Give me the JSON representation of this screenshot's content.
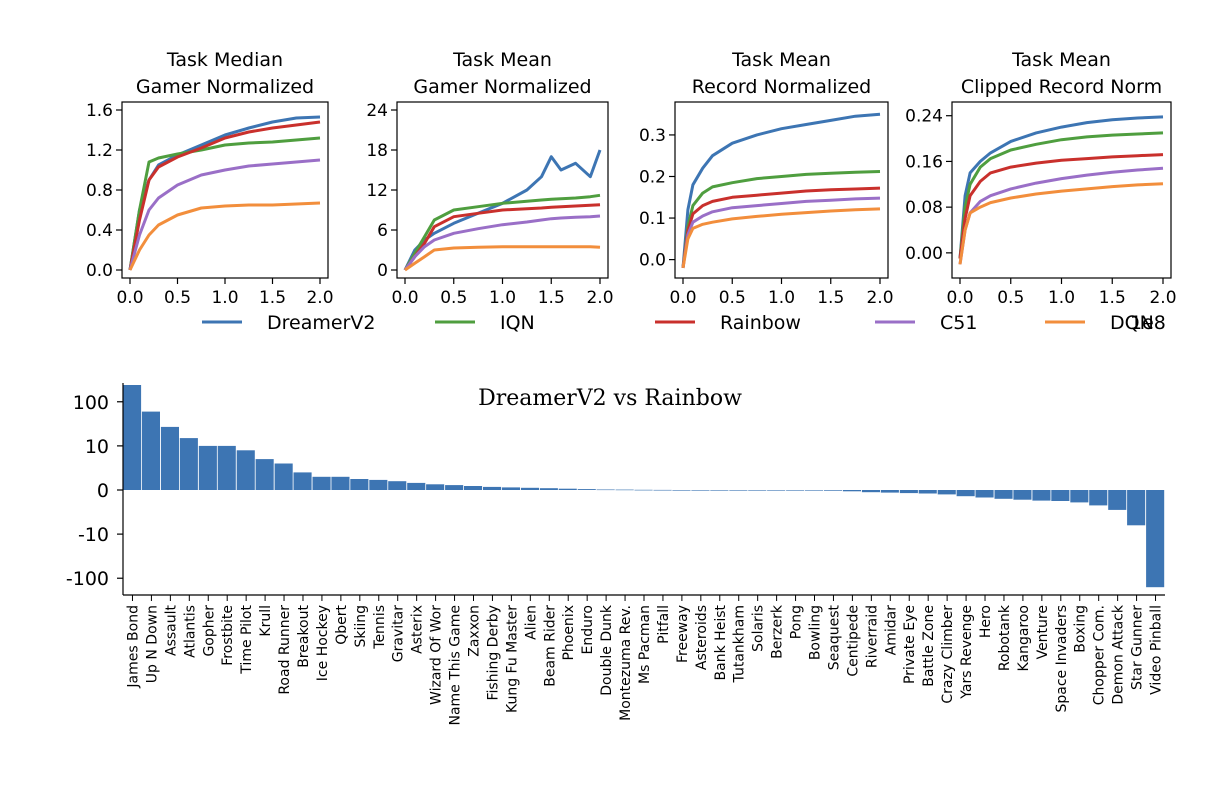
{
  "colors": {
    "DreamerV2": "#3d75b3",
    "IQN": "#4f9e3f",
    "Rainbow": "#c9302c",
    "C51": "#9a6fc7",
    "DQN": "#f28e3c",
    "bar": "#3d75b3"
  },
  "legend": {
    "entries": [
      "DreamerV2",
      "IQN",
      "Rainbow",
      "C51",
      "DQN"
    ],
    "x_scale_label": "1e8"
  },
  "chart_data": [
    {
      "type": "line",
      "title_lines": [
        "Task Median",
        "Gamer Normalized"
      ],
      "xlim": [
        0,
        2.0
      ],
      "ylim": [
        0,
        1.6
      ],
      "xticks": [
        "0.0",
        "0.5",
        "1.0",
        "1.5",
        "2.0"
      ],
      "yticks": [
        "0.0",
        "0.4",
        "0.8",
        "1.2",
        "1.6"
      ],
      "ytick_values": [
        0,
        0.4,
        0.8,
        1.2,
        1.6
      ],
      "x": [
        0.0,
        0.1,
        0.2,
        0.3,
        0.5,
        0.75,
        1.0,
        1.25,
        1.5,
        1.75,
        2.0
      ],
      "series": [
        {
          "name": "DreamerV2",
          "values": [
            0.0,
            0.6,
            0.9,
            1.05,
            1.15,
            1.25,
            1.35,
            1.42,
            1.48,
            1.52,
            1.53
          ]
        },
        {
          "name": "IQN",
          "values": [
            0.0,
            0.6,
            1.08,
            1.12,
            1.16,
            1.2,
            1.25,
            1.27,
            1.28,
            1.3,
            1.32
          ]
        },
        {
          "name": "Rainbow",
          "values": [
            0.0,
            0.5,
            0.9,
            1.03,
            1.13,
            1.22,
            1.32,
            1.38,
            1.42,
            1.45,
            1.48
          ]
        },
        {
          "name": "C51",
          "values": [
            0.0,
            0.35,
            0.6,
            0.72,
            0.85,
            0.95,
            1.0,
            1.04,
            1.06,
            1.08,
            1.1
          ]
        },
        {
          "name": "DQN",
          "values": [
            0.0,
            0.2,
            0.35,
            0.45,
            0.55,
            0.62,
            0.64,
            0.65,
            0.65,
            0.66,
            0.67
          ]
        }
      ]
    },
    {
      "type": "line",
      "title_lines": [
        "Task Mean",
        "Gamer Normalized"
      ],
      "xlim": [
        0,
        2.0
      ],
      "ylim": [
        0,
        24
      ],
      "xticks": [
        "0.0",
        "0.5",
        "1.0",
        "1.5",
        "2.0"
      ],
      "yticks": [
        "0",
        "6",
        "12",
        "18",
        "24"
      ],
      "ytick_values": [
        0,
        6,
        12,
        18,
        24
      ],
      "x": [
        0.0,
        0.1,
        0.2,
        0.3,
        0.5,
        0.75,
        1.0,
        1.25,
        1.4,
        1.5,
        1.6,
        1.75,
        1.9,
        2.0
      ],
      "series": [
        {
          "name": "DreamerV2",
          "values": [
            0.0,
            3.0,
            4.5,
            5.5,
            7.0,
            8.5,
            10.0,
            12.0,
            14.0,
            17.0,
            15.0,
            16.0,
            14.0,
            18.0
          ]
        },
        {
          "name": "IQN",
          "values": [
            0.0,
            2.5,
            5.0,
            7.5,
            9.0,
            9.5,
            10.0,
            10.3,
            10.5,
            10.6,
            10.7,
            10.8,
            11.0,
            11.2
          ]
        },
        {
          "name": "Rainbow",
          "values": [
            0.0,
            2.0,
            4.0,
            6.5,
            8.0,
            8.5,
            9.0,
            9.2,
            9.3,
            9.4,
            9.5,
            9.6,
            9.7,
            9.8
          ]
        },
        {
          "name": "C51",
          "values": [
            0.0,
            2.0,
            3.5,
            4.5,
            5.5,
            6.2,
            6.8,
            7.2,
            7.5,
            7.7,
            7.8,
            7.9,
            8.0,
            8.1
          ]
        },
        {
          "name": "DQN",
          "values": [
            0.0,
            1.0,
            2.0,
            3.0,
            3.3,
            3.4,
            3.5,
            3.5,
            3.5,
            3.5,
            3.5,
            3.5,
            3.5,
            3.4
          ]
        }
      ]
    },
    {
      "type": "line",
      "title_lines": [
        "Task Mean",
        "Record Normalized"
      ],
      "xlim": [
        0,
        2.0
      ],
      "ylim": [
        -0.025,
        0.36
      ],
      "xticks": [
        "0.0",
        "0.5",
        "1.0",
        "1.5",
        "2.0"
      ],
      "yticks": [
        "0.0",
        "0.1",
        "0.2",
        "0.3"
      ],
      "ytick_values": [
        0.0,
        0.1,
        0.2,
        0.3
      ],
      "x": [
        0.0,
        0.05,
        0.1,
        0.2,
        0.3,
        0.5,
        0.75,
        1.0,
        1.25,
        1.5,
        1.75,
        2.0
      ],
      "series": [
        {
          "name": "DreamerV2",
          "values": [
            -0.02,
            0.12,
            0.18,
            0.22,
            0.25,
            0.28,
            0.3,
            0.315,
            0.325,
            0.335,
            0.345,
            0.35
          ]
        },
        {
          "name": "IQN",
          "values": [
            -0.02,
            0.08,
            0.13,
            0.16,
            0.175,
            0.185,
            0.195,
            0.2,
            0.205,
            0.208,
            0.21,
            0.212
          ]
        },
        {
          "name": "Rainbow",
          "values": [
            -0.02,
            0.07,
            0.11,
            0.13,
            0.14,
            0.15,
            0.155,
            0.16,
            0.165,
            0.168,
            0.17,
            0.172
          ]
        },
        {
          "name": "C51",
          "values": [
            -0.02,
            0.06,
            0.09,
            0.105,
            0.115,
            0.125,
            0.13,
            0.135,
            0.14,
            0.143,
            0.146,
            0.148
          ]
        },
        {
          "name": "DQN",
          "values": [
            -0.02,
            0.05,
            0.075,
            0.085,
            0.09,
            0.098,
            0.104,
            0.109,
            0.113,
            0.117,
            0.12,
            0.122
          ]
        }
      ]
    },
    {
      "type": "line",
      "title_lines": [
        "Task Mean",
        "Clipped Record Norm"
      ],
      "xlim": [
        0,
        2.0
      ],
      "ylim": [
        -0.03,
        0.25
      ],
      "xticks": [
        "0.0",
        "0.5",
        "1.0",
        "1.5",
        "2.0"
      ],
      "yticks": [
        "0.00",
        "0.08",
        "0.16",
        "0.24"
      ],
      "ytick_values": [
        0.0,
        0.08,
        0.16,
        0.24
      ],
      "x": [
        0.0,
        0.05,
        0.1,
        0.2,
        0.3,
        0.5,
        0.75,
        1.0,
        1.25,
        1.5,
        1.75,
        2.0
      ],
      "series": [
        {
          "name": "DreamerV2",
          "values": [
            -0.01,
            0.1,
            0.14,
            0.16,
            0.175,
            0.195,
            0.21,
            0.22,
            0.228,
            0.233,
            0.236,
            0.238
          ]
        },
        {
          "name": "IQN",
          "values": [
            -0.01,
            0.08,
            0.12,
            0.15,
            0.165,
            0.18,
            0.19,
            0.198,
            0.203,
            0.206,
            0.208,
            0.21
          ]
        },
        {
          "name": "Rainbow",
          "values": [
            -0.01,
            0.06,
            0.1,
            0.125,
            0.14,
            0.15,
            0.157,
            0.162,
            0.165,
            0.168,
            0.17,
            0.172
          ]
        },
        {
          "name": "C51",
          "values": [
            -0.02,
            0.04,
            0.07,
            0.09,
            0.1,
            0.112,
            0.122,
            0.13,
            0.136,
            0.141,
            0.145,
            0.148
          ]
        },
        {
          "name": "DQN",
          "values": [
            -0.02,
            0.04,
            0.07,
            0.08,
            0.088,
            0.096,
            0.103,
            0.108,
            0.112,
            0.116,
            0.119,
            0.121
          ]
        }
      ]
    },
    {
      "type": "bar",
      "title": "DreamerV2 vs Rainbow",
      "yscale": "symlog",
      "ylim": [
        -240,
        240
      ],
      "yticks": [
        "100",
        "10",
        "0",
        "-10",
        "-100"
      ],
      "ytick_values": [
        100,
        10,
        0,
        -10,
        -100
      ],
      "categories": [
        "James Bond",
        "Up N Down",
        "Assault",
        "Atlantis",
        "Gopher",
        "Frostbite",
        "Time Pilot",
        "Krull",
        "Road Runner",
        "Breakout",
        "Ice Hockey",
        "Qbert",
        "Skiing",
        "Tennis",
        "Gravitar",
        "Asterix",
        "Wizard Of Wor",
        "Name This Game",
        "Zaxxon",
        "Fishing Derby",
        "Kung Fu Master",
        "Alien",
        "Beam Rider",
        "Phoenix",
        "Enduro",
        "Double Dunk",
        "Montezuma Rev.",
        "Ms Pacman",
        "Pitfall",
        "Freeway",
        "Asteroids",
        "Bank Heist",
        "Tutankham",
        "Solaris",
        "Berzerk",
        "Pong",
        "Bowling",
        "Seaquest",
        "Centipede",
        "Riverraid",
        "Amidar",
        "Private Eye",
        "Battle Zone",
        "Crazy Climber",
        "Yars Revenge",
        "Hero",
        "Robotank",
        "Kangaroo",
        "Venture",
        "Space Invaders",
        "Boxing",
        "Chopper Com.",
        "Demon Attack",
        "Star Gunner",
        "Video Pinball"
      ],
      "values": [
        240,
        60,
        27,
        15,
        10,
        10,
        9,
        7,
        6,
        4,
        3,
        3,
        2.5,
        2.3,
        2.0,
        1.6,
        1.3,
        1.1,
        0.9,
        0.7,
        0.6,
        0.5,
        0.4,
        0.3,
        0.2,
        0.12,
        0.08,
        0.05,
        0.02,
        0.01,
        -0.01,
        -0.02,
        -0.04,
        -0.06,
        -0.08,
        -0.1,
        -0.12,
        -0.15,
        -0.3,
        -0.5,
        -0.6,
        -0.7,
        -0.8,
        -1.0,
        -1.4,
        -1.7,
        -2.0,
        -2.2,
        -2.4,
        -2.5,
        -2.8,
        -3.5,
        -4.5,
        -8.0,
        -160
      ]
    }
  ]
}
